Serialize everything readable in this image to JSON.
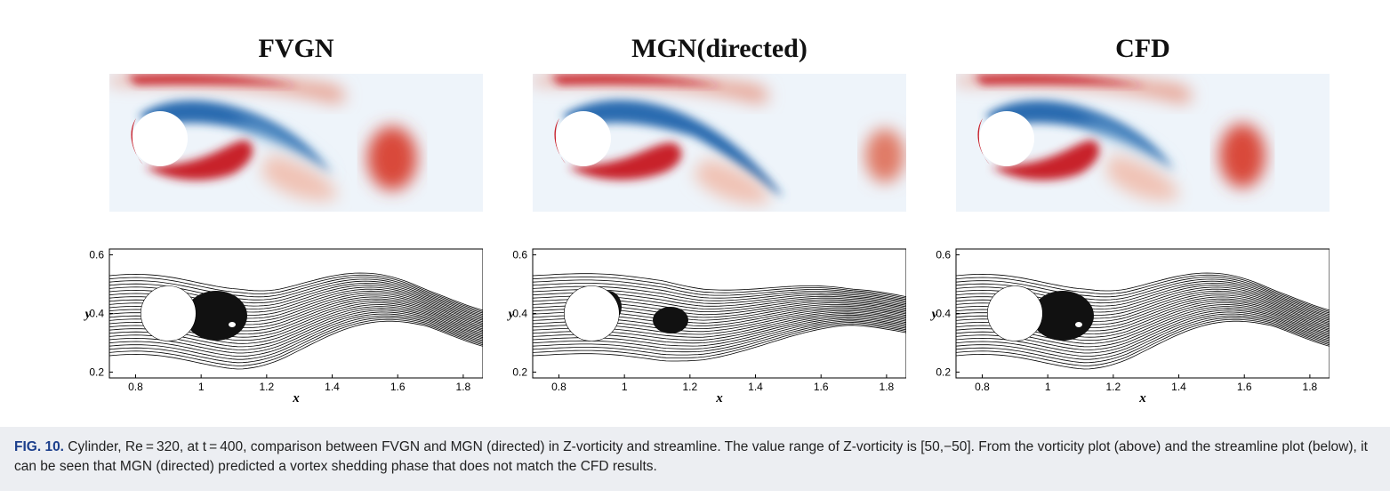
{
  "panels": [
    {
      "title": "FVGN",
      "variant": "fvgn"
    },
    {
      "title": "MGN(directed)",
      "variant": "mgn"
    },
    {
      "title": "CFD",
      "variant": "cfd"
    }
  ],
  "axes": {
    "xlabel": "x",
    "ylabel": "y",
    "xticks": [
      "0.8",
      "1",
      "1.2",
      "1.4",
      "1.6",
      "1.8"
    ],
    "yticks": [
      "0.6",
      "0.4",
      "0.2"
    ]
  },
  "caption": {
    "label": "FIG. 10.",
    "text": " Cylinder, Re = 320, at t = 400, comparison between FVGN and MGN (directed) in Z-vorticity and streamline. The value range of Z-vorticity is [50,−50]. From the vorticity plot (above) and the streamline plot (below), it can be seen that MGN (directed) predicted a vortex shedding phase that does not match the CFD results."
  },
  "colors": {
    "positive": "#c8202b",
    "negative": "#2b6cb0",
    "background": "#eef4fa",
    "caption_bg": "#eceef2",
    "caption_label": "#1c3f8c"
  }
}
